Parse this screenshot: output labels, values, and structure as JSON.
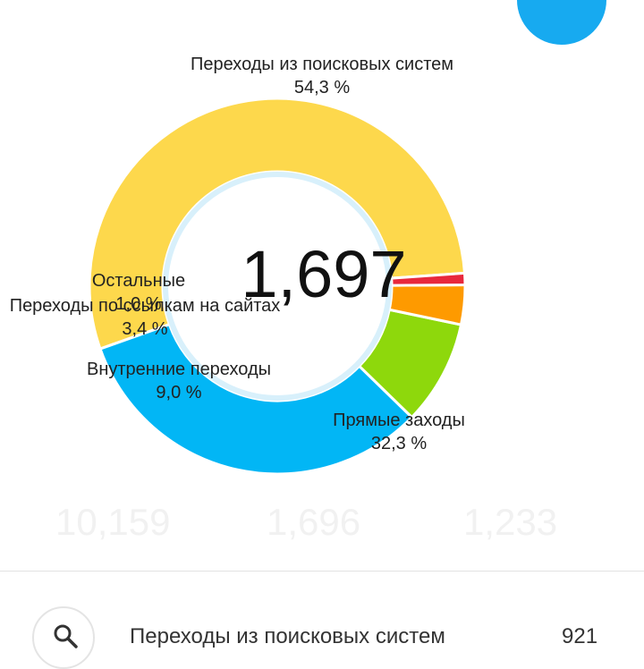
{
  "chart_data": {
    "type": "pie",
    "donut": true,
    "center_value": "1,697",
    "slices": [
      {
        "name": "Переходы из поисковых систем",
        "label": "54,3 %",
        "value": 54.3,
        "color": "#fdd84c"
      },
      {
        "name": "Прямые заходы",
        "label": "32,3 %",
        "value": 32.3,
        "color": "#02b6f5"
      },
      {
        "name": "Внутренние переходы",
        "label": "9,0 %",
        "value": 9.0,
        "color": "#8ed80c"
      },
      {
        "name": "Переходы по ссылкам на сайтах",
        "label": "3,4 %",
        "value": 3.4,
        "color": "#fe9a00"
      },
      {
        "name": "Остальные",
        "label": "1,0 %",
        "value": 1.0,
        "color": "#e8283c"
      }
    ]
  },
  "stats": [
    "10,159",
    "1,696",
    "1,233"
  ],
  "list": [
    {
      "icon": "search-icon",
      "label": "Переходы из поисковых систем",
      "value": "921"
    }
  ]
}
